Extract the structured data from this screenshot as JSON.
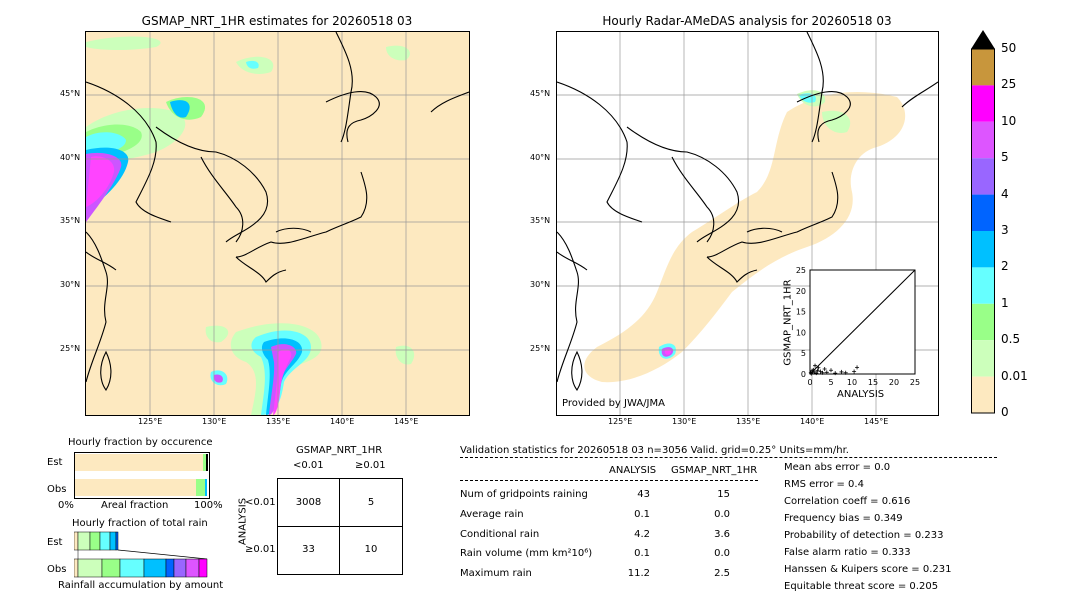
{
  "left_map": {
    "title": "GSMAP_NRT_1HR estimates for 20260518 03",
    "lat_labels": [
      "45°N",
      "40°N",
      "35°N",
      "30°N",
      "25°N"
    ],
    "lon_labels": [
      "125°E",
      "130°E",
      "135°E",
      "140°E",
      "145°E"
    ]
  },
  "right_map": {
    "title": "Hourly Radar-AMeDAS analysis for 20260518 03",
    "lat_labels": [
      "45°N",
      "40°N",
      "35°N",
      "30°N",
      "25°N"
    ],
    "lon_labels": [
      "125°E",
      "130°E",
      "135°E",
      "140°E",
      "145°E"
    ],
    "credit": "Provided by JWA/JMA"
  },
  "colorbar": {
    "labels": [
      "50",
      "25",
      "10",
      "5",
      "4",
      "3",
      "2",
      "1",
      "0.5",
      "0.01",
      "0"
    ],
    "colors": [
      "#c8963c",
      "#ff00ff",
      "#dd55ff",
      "#9966ff",
      "#0064ff",
      "#00c0ff",
      "#66ffff",
      "#99ff88",
      "#ccffbb",
      "#fde9c0"
    ],
    "extend_color": "#000000"
  },
  "fraction_occurrence": {
    "title": "Hourly fraction by occurence",
    "row_est": "Est",
    "row_obs": "Obs",
    "x_left": "0%",
    "x_mid": "Areal fraction",
    "x_right": "100%"
  },
  "fraction_total": {
    "title": "Hourly fraction of total rain",
    "row_est": "Est",
    "row_obs": "Obs",
    "xlabel": "Rainfall accumulation by amount"
  },
  "contingency": {
    "col_title": "GSMAP_NRT_1HR",
    "col_lt": "<0.01",
    "col_ge": "≥0.01",
    "row_title": "ANALYSIS",
    "row_lt": "<0.01",
    "row_ge": "≥0.01",
    "cells": [
      "3008",
      "5",
      "33",
      "10"
    ]
  },
  "validation": {
    "header": "Validation statistics for 20260518 03  n=3056 Valid. grid=0.25° Units=mm/hr.",
    "col_analysis": "ANALYSIS",
    "col_gsmap": "GSMAP_NRT_1HR",
    "rows": [
      {
        "label": "Num of gridpoints raining",
        "analysis": "43",
        "gsmap": "15"
      },
      {
        "label": "Average rain",
        "analysis": "0.1",
        "gsmap": "0.0"
      },
      {
        "label": "Conditional rain",
        "analysis": "4.2",
        "gsmap": "3.6"
      },
      {
        "label": "Rain volume (mm km²10⁶)",
        "analysis": "0.1",
        "gsmap": "0.0"
      },
      {
        "label": "Maximum rain",
        "analysis": "11.2",
        "gsmap": "2.5"
      }
    ],
    "scores": [
      "Mean abs error =    0.0",
      "RMS error =    0.4",
      "Correlation coeff =  0.616",
      "Frequency bias =  0.349",
      "Probability of detection =  0.233",
      "False alarm ratio =  0.333",
      "Hanssen & Kuipers score =  0.231",
      "Equitable threat score =  0.205"
    ]
  },
  "chart_data": {
    "type": "scatter",
    "xlabel": "ANALYSIS",
    "ylabel": "GSMAP_NRT_1HR",
    "xlim": [
      0,
      25
    ],
    "ylim": [
      0,
      25
    ],
    "xticks": [
      "0",
      "5",
      "10",
      "15",
      "20",
      "25"
    ],
    "yticks": [
      "0",
      "5",
      "10",
      "15",
      "20",
      "25"
    ],
    "points": [
      [
        0.2,
        0.3
      ],
      [
        0.5,
        0.8
      ],
      [
        0.8,
        1.0
      ],
      [
        1.0,
        0.5
      ],
      [
        1.2,
        2.0
      ],
      [
        1.5,
        0.2
      ],
      [
        2.0,
        1.5
      ],
      [
        2.5,
        0.6
      ],
      [
        3.0,
        0.3
      ],
      [
        3.5,
        1.2
      ],
      [
        4.0,
        0.4
      ],
      [
        5.0,
        0.9
      ],
      [
        6.0,
        0.2
      ],
      [
        7.5,
        0.5
      ],
      [
        8.5,
        0.3
      ],
      [
        10.5,
        0.6
      ],
      [
        11.2,
        1.6
      ],
      [
        0.3,
        0.1
      ],
      [
        0.6,
        0.4
      ],
      [
        1.8,
        0.8
      ]
    ]
  }
}
